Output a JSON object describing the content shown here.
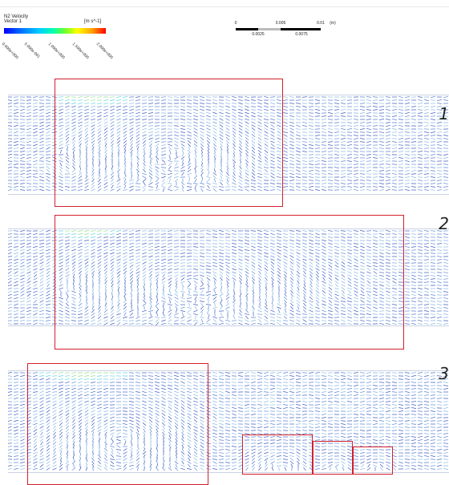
{
  "legend": {
    "title": "N2 Velocity",
    "subtitle": "Vector 1",
    "unit": "[m s^-1]",
    "tick_labels": [
      "0.000e+000",
      "5.000e-001",
      "1.000e+000",
      "1.500e+000",
      "2.000e+000"
    ],
    "colors": [
      "#0000ff",
      "#00cfff",
      "#6fff2a",
      "#ffff00",
      "#ff0000"
    ]
  },
  "scale_bar": {
    "top_labels": [
      "0",
      "0.005",
      "0.01",
      "(m)"
    ],
    "bottom_labels": [
      "0.0025",
      "0.0075"
    ]
  },
  "panels": [
    {
      "label": "1"
    },
    {
      "label": "2"
    },
    {
      "label": "3"
    }
  ]
}
